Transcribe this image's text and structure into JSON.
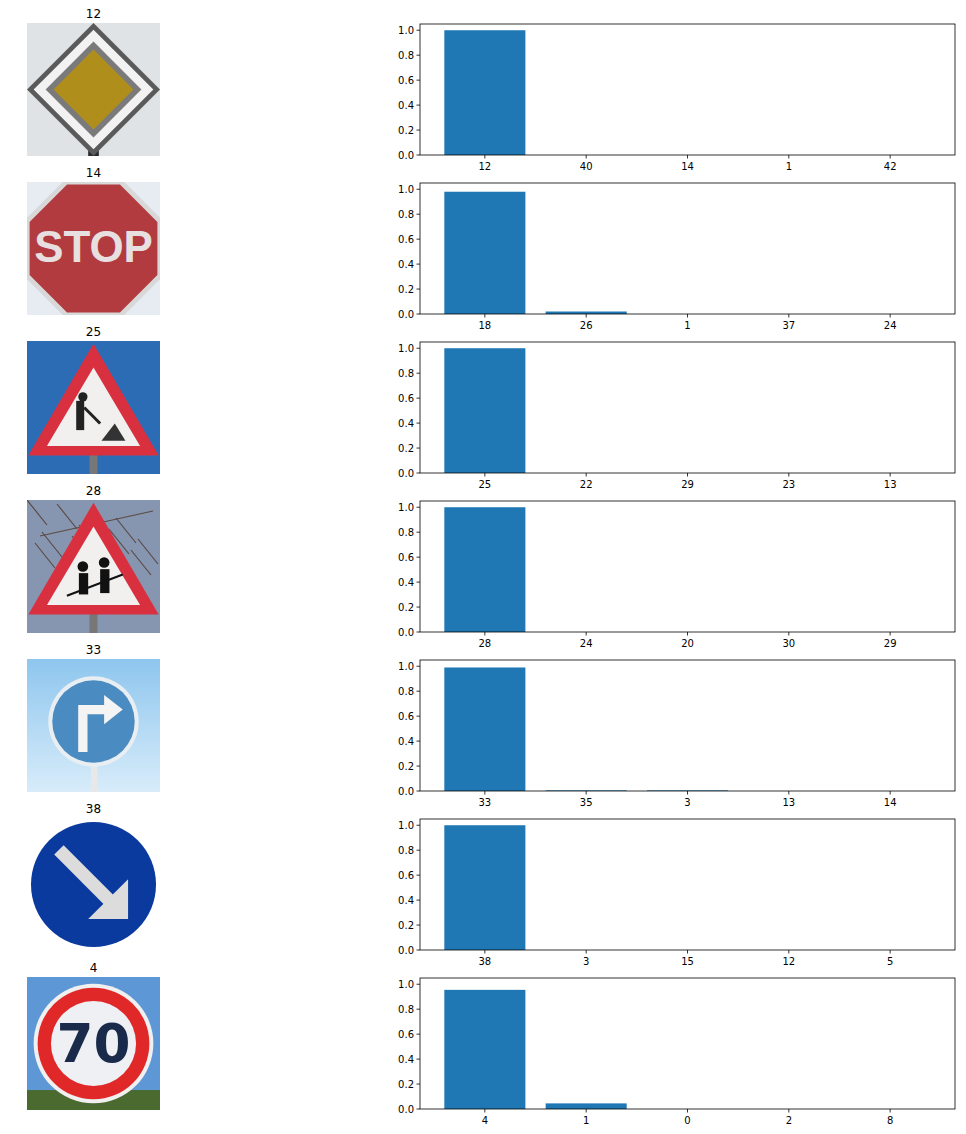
{
  "images": [
    {
      "title": "12"
    },
    {
      "title": "14",
      "text": "STOP"
    },
    {
      "title": "25"
    },
    {
      "title": "28"
    },
    {
      "title": "33"
    },
    {
      "title": "38"
    },
    {
      "title": "4",
      "text": "70"
    }
  ],
  "chart_data": [
    {
      "type": "bar",
      "categories": [
        "12",
        "40",
        "14",
        "1",
        "42"
      ],
      "values": [
        1.0,
        0,
        0,
        0,
        0
      ],
      "color": "#1f77b4",
      "ylim": [
        0,
        1.05
      ],
      "yticks": [
        {
          "value": 0,
          "label": "0.0"
        },
        0.2,
        0.4,
        0.6,
        0.8,
        {
          "value": 1,
          "label": "1.0"
        }
      ]
    },
    {
      "type": "bar",
      "categories": [
        "18",
        "26",
        "1",
        "37",
        "24"
      ],
      "values": [
        0.98,
        0.02,
        0,
        0,
        0
      ],
      "color": "#1f77b4",
      "ylim": [
        0,
        1.05
      ],
      "yticks": [
        {
          "value": 0,
          "label": "0.0"
        },
        0.2,
        0.4,
        0.6,
        0.8,
        {
          "value": 1,
          "label": "1.0"
        }
      ]
    },
    {
      "type": "bar",
      "categories": [
        "25",
        "22",
        "29",
        "23",
        "13"
      ],
      "values": [
        1.0,
        0,
        0,
        0,
        0
      ],
      "color": "#1f77b4",
      "ylim": [
        0,
        1.05
      ],
      "yticks": [
        {
          "value": 0,
          "label": "0.0"
        },
        0.2,
        0.4,
        0.6,
        0.8,
        {
          "value": 1,
          "label": "1.0"
        }
      ]
    },
    {
      "type": "bar",
      "categories": [
        "28",
        "24",
        "20",
        "30",
        "29"
      ],
      "values": [
        1.0,
        0,
        0,
        0,
        0
      ],
      "color": "#1f77b4",
      "ylim": [
        0,
        1.05
      ],
      "yticks": [
        {
          "value": 0,
          "label": "0.0"
        },
        0.2,
        0.4,
        0.6,
        0.8,
        {
          "value": 1,
          "label": "1.0"
        }
      ]
    },
    {
      "type": "bar",
      "categories": [
        "33",
        "35",
        "3",
        "13",
        "14"
      ],
      "values": [
        0.99,
        0.005,
        0.005,
        0,
        0
      ],
      "color": "#1f77b4",
      "ylim": [
        0,
        1.05
      ],
      "yticks": [
        {
          "value": 0,
          "label": "0.0"
        },
        0.2,
        0.4,
        0.6,
        0.8,
        {
          "value": 1,
          "label": "1.0"
        }
      ]
    },
    {
      "type": "bar",
      "categories": [
        "38",
        "3",
        "15",
        "12",
        "5"
      ],
      "values": [
        1.0,
        0,
        0,
        0,
        0
      ],
      "color": "#1f77b4",
      "ylim": [
        0,
        1.05
      ],
      "yticks": [
        {
          "value": 0,
          "label": "0.0"
        },
        0.2,
        0.4,
        0.6,
        0.8,
        {
          "value": 1,
          "label": "1.0"
        }
      ]
    },
    {
      "type": "bar",
      "categories": [
        "4",
        "1",
        "0",
        "2",
        "8"
      ],
      "values": [
        0.955,
        0.045,
        0,
        0,
        0
      ],
      "color": "#1f77b4",
      "ylim": [
        0,
        1.05
      ],
      "yticks": [
        {
          "value": 0,
          "label": "0.0"
        },
        0.2,
        0.4,
        0.6,
        0.8,
        {
          "value": 1,
          "label": "1.0"
        }
      ]
    }
  ]
}
